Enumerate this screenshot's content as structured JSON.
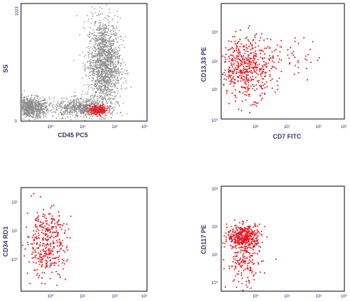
{
  "chart_data": [
    {
      "type": "scatter",
      "xlabel": "CD45 PC5",
      "ylabel": "SS",
      "x_scale": "log",
      "y_scale": "linear",
      "x_ticks": [
        "10⁰",
        "10¹",
        "10²",
        "10³"
      ],
      "y_ticks": [
        "0",
        "1023"
      ],
      "colors": {
        "background_events": "#8a8a8a",
        "gated_population": "#e31b23"
      },
      "clusters": [
        {
          "name_hidden": true,
          "color": "#8a8a8a",
          "x_center": 0.1,
          "y_center": 120,
          "count": 900
        },
        {
          "name_hidden": true,
          "color": "#8a8a8a",
          "x_center": 40,
          "y_center": 500,
          "count": 1600
        },
        {
          "name_hidden": true,
          "color": "#8a8a8a",
          "x_center": 6,
          "y_center": 120,
          "count": 600
        },
        {
          "name_hidden": true,
          "color": "#e31b23",
          "x_center": 25,
          "y_center": 100,
          "count": 260
        }
      ]
    },
    {
      "type": "scatter",
      "xlabel": "CD7 FITC",
      "ylabel": "CD13,33 PE",
      "x_scale": "log",
      "y_scale": "log",
      "x_ticks": [
        "10⁰",
        "10¹",
        "10²",
        "10³"
      ],
      "y_ticks": [
        "10⁰",
        "10¹",
        "10²",
        "10³"
      ],
      "color": "#e31b23",
      "clusters": [
        {
          "x_center": 0.5,
          "y_center": 15,
          "count": 520
        },
        {
          "x_center": 20,
          "y_center": 30,
          "count": 40
        }
      ]
    },
    {
      "type": "scatter",
      "xlabel": "",
      "ylabel": "CD34 RD1",
      "x_scale": "log",
      "y_scale": "log",
      "x_ticks": [
        "10⁰",
        "10¹",
        "10²",
        "10³"
      ],
      "y_ticks": [
        "10⁰",
        "10¹",
        "10²"
      ],
      "color": "#e31b23",
      "clusters": [
        {
          "x_center": 0.4,
          "y_center": 10,
          "count": 230
        },
        {
          "x_center": 0.4,
          "y_center": 1.5,
          "count": 140
        }
      ]
    },
    {
      "type": "scatter",
      "xlabel": "",
      "ylabel": "CD117 PE",
      "x_scale": "log",
      "y_scale": "log",
      "x_ticks": [
        "10⁰",
        "10¹",
        "10²",
        "10³"
      ],
      "y_ticks": [
        "10⁰",
        "10¹",
        "10²",
        "10³"
      ],
      "color": "#e31b23",
      "clusters": [
        {
          "x_center": 0.4,
          "y_center": 15,
          "count": 420
        },
        {
          "x_center": 0.4,
          "y_center": 1.5,
          "count": 160
        }
      ]
    }
  ]
}
